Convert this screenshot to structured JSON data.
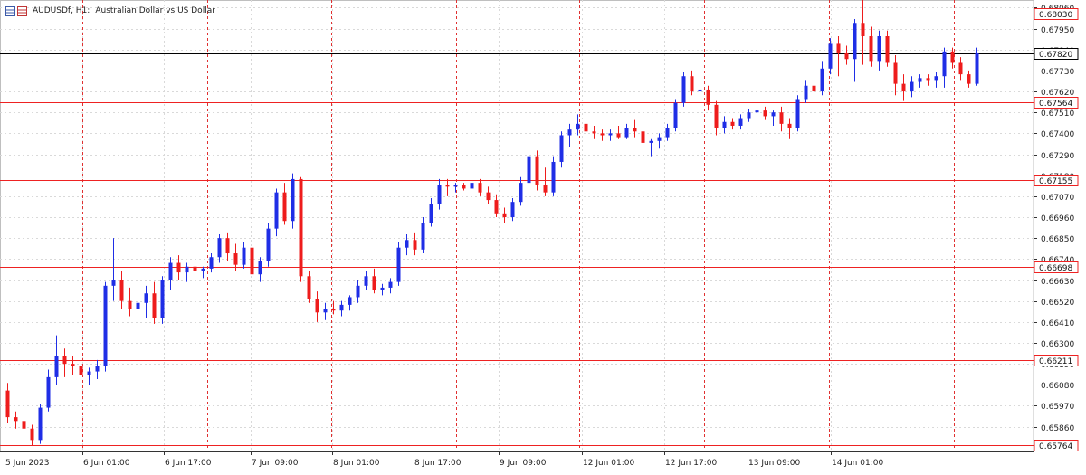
{
  "window": {
    "symbol": "AUDUSDf, H1:",
    "description": "Australian Dollar vs US Dollar",
    "menu_icon": "table-icon"
  },
  "colors": {
    "bull": "#1f2ee6",
    "bear": "#ee1c1c",
    "grid": "#d9d9d9",
    "level": "#ee2222",
    "current": "#000000",
    "session": "#e03030",
    "axis_text": "#222222",
    "label_bg": "#ffffff"
  },
  "chart_data": {
    "type": "candlestick",
    "title": "AUDUSDf, H1:  Australian Dollar vs US Dollar",
    "ylim": [
      0.6573,
      0.681
    ],
    "price_ticks": [
      "0.68060",
      "0.67950",
      "0.67840",
      "0.67730",
      "0.67620",
      "0.67510",
      "0.67400",
      "0.67290",
      "0.67180",
      "0.67070",
      "0.66960",
      "0.66850",
      "0.66740",
      "0.66630",
      "0.66520",
      "0.66410",
      "0.66300",
      "0.66190",
      "0.66080",
      "0.65970",
      "0.65860"
    ],
    "time_labels": [
      "5 Jun 2023",
      "6 Jun 01:00",
      "6 Jun 17:00",
      "7 Jun 09:00",
      "8 Jun 01:00",
      "8 Jun 17:00",
      "9 Jun 09:00",
      "12 Jun 01:00",
      "12 Jun 17:00",
      "13 Jun 09:00",
      "14 Jun 01:00"
    ],
    "horizontal_levels": [
      "0.68030",
      "0.67564",
      "0.67155",
      "0.66698",
      "0.66211",
      "0.65764"
    ],
    "current_price": "0.67820",
    "candles": [
      [
        0.6605,
        0.6609,
        0.6588,
        0.6591
      ],
      [
        0.6591,
        0.6594,
        0.6585,
        0.6589
      ],
      [
        0.6589,
        0.6592,
        0.6582,
        0.6585
      ],
      [
        0.6585,
        0.6587,
        0.6576,
        0.6579
      ],
      [
        0.6579,
        0.6598,
        0.6577,
        0.6596
      ],
      [
        0.6596,
        0.6616,
        0.6594,
        0.6612
      ],
      [
        0.6612,
        0.6634,
        0.6608,
        0.6623
      ],
      [
        0.6623,
        0.6627,
        0.6612,
        0.6619
      ],
      [
        0.6619,
        0.6623,
        0.6613,
        0.6618
      ],
      [
        0.6618,
        0.6621,
        0.6611,
        0.6613
      ],
      [
        0.6613,
        0.6617,
        0.6608,
        0.6615
      ],
      [
        0.6615,
        0.6621,
        0.6611,
        0.6618
      ],
      [
        0.6618,
        0.6662,
        0.6615,
        0.666
      ],
      [
        0.666,
        0.6685,
        0.6652,
        0.6663
      ],
      [
        0.6663,
        0.6668,
        0.6648,
        0.6652
      ],
      [
        0.6652,
        0.6659,
        0.6644,
        0.6648
      ],
      [
        0.6648,
        0.6655,
        0.6639,
        0.6651
      ],
      [
        0.6651,
        0.666,
        0.6643,
        0.6656
      ],
      [
        0.6656,
        0.6662,
        0.664,
        0.6643
      ],
      [
        0.6643,
        0.6665,
        0.664,
        0.6663
      ],
      [
        0.6663,
        0.6675,
        0.6658,
        0.6672
      ],
      [
        0.6672,
        0.6676,
        0.6663,
        0.6667
      ],
      [
        0.6667,
        0.6672,
        0.6662,
        0.667
      ],
      [
        0.667,
        0.6673,
        0.6665,
        0.6668
      ],
      [
        0.6668,
        0.667,
        0.6664,
        0.6669
      ],
      [
        0.6669,
        0.6677,
        0.6667,
        0.6675
      ],
      [
        0.6675,
        0.6687,
        0.6672,
        0.6685
      ],
      [
        0.6685,
        0.6688,
        0.6673,
        0.6677
      ],
      [
        0.6677,
        0.6682,
        0.6668,
        0.6671
      ],
      [
        0.6671,
        0.6683,
        0.6669,
        0.668
      ],
      [
        0.668,
        0.6683,
        0.6663,
        0.6666
      ],
      [
        0.6666,
        0.6675,
        0.6662,
        0.6673
      ],
      [
        0.6673,
        0.6693,
        0.667,
        0.669
      ],
      [
        0.669,
        0.6711,
        0.6686,
        0.6709
      ],
      [
        0.6709,
        0.6714,
        0.6692,
        0.6694
      ],
      [
        0.6694,
        0.6719,
        0.669,
        0.6716
      ],
      [
        0.6716,
        0.6717,
        0.6662,
        0.6665
      ],
      [
        0.6665,
        0.6668,
        0.6651,
        0.6653
      ],
      [
        0.6653,
        0.6657,
        0.6641,
        0.6646
      ],
      [
        0.6646,
        0.6651,
        0.6642,
        0.6648
      ],
      [
        0.6648,
        0.6652,
        0.6645,
        0.6647
      ],
      [
        0.6647,
        0.6652,
        0.6644,
        0.665
      ],
      [
        0.665,
        0.6655,
        0.6647,
        0.6654
      ],
      [
        0.6654,
        0.6663,
        0.6651,
        0.666
      ],
      [
        0.666,
        0.6668,
        0.6658,
        0.6665
      ],
      [
        0.6665,
        0.6669,
        0.6656,
        0.6658
      ],
      [
        0.6658,
        0.6661,
        0.6655,
        0.6659
      ],
      [
        0.6659,
        0.6664,
        0.6656,
        0.6662
      ],
      [
        0.6662,
        0.6683,
        0.666,
        0.668
      ],
      [
        0.668,
        0.6687,
        0.6676,
        0.6684
      ],
      [
        0.6684,
        0.6688,
        0.6676,
        0.6679
      ],
      [
        0.6679,
        0.6696,
        0.6677,
        0.6693
      ],
      [
        0.6693,
        0.6706,
        0.6691,
        0.6703
      ],
      [
        0.6703,
        0.6716,
        0.67,
        0.6713
      ],
      [
        0.6713,
        0.6716,
        0.6707,
        0.6712
      ],
      [
        0.6712,
        0.6714,
        0.6709,
        0.6713
      ],
      [
        0.6713,
        0.6714,
        0.671,
        0.6711
      ],
      [
        0.6711,
        0.6716,
        0.6709,
        0.6714
      ],
      [
        0.6714,
        0.6716,
        0.6707,
        0.6709
      ],
      [
        0.6709,
        0.6712,
        0.6703,
        0.6705
      ],
      [
        0.6705,
        0.6708,
        0.6696,
        0.6698
      ],
      [
        0.6698,
        0.6701,
        0.6693,
        0.6696
      ],
      [
        0.6696,
        0.6706,
        0.6694,
        0.6704
      ],
      [
        0.6704,
        0.6717,
        0.6702,
        0.6714
      ],
      [
        0.6714,
        0.6731,
        0.6712,
        0.6728
      ],
      [
        0.6728,
        0.6731,
        0.671,
        0.6713
      ],
      [
        0.6713,
        0.6722,
        0.6707,
        0.6709
      ],
      [
        0.6709,
        0.6728,
        0.6707,
        0.6725
      ],
      [
        0.6725,
        0.6741,
        0.6722,
        0.6739
      ],
      [
        0.6739,
        0.6745,
        0.6733,
        0.6742
      ],
      [
        0.6742,
        0.675,
        0.6739,
        0.6745
      ],
      [
        0.6745,
        0.6747,
        0.6739,
        0.6741
      ],
      [
        0.6741,
        0.6744,
        0.6737,
        0.674
      ],
      [
        0.674,
        0.6742,
        0.6736,
        0.6739
      ],
      [
        0.6739,
        0.6742,
        0.6736,
        0.674
      ],
      [
        0.674,
        0.6744,
        0.6737,
        0.6738
      ],
      [
        0.6738,
        0.6745,
        0.6737,
        0.6743
      ],
      [
        0.6743,
        0.6747,
        0.6738,
        0.6741
      ],
      [
        0.6741,
        0.6743,
        0.6734,
        0.6735
      ],
      [
        0.6735,
        0.6737,
        0.6728,
        0.6736
      ],
      [
        0.6736,
        0.674,
        0.6732,
        0.6738
      ],
      [
        0.6738,
        0.6745,
        0.6736,
        0.6743
      ],
      [
        0.6743,
        0.6758,
        0.6741,
        0.6756
      ],
      [
        0.6756,
        0.6772,
        0.6754,
        0.677
      ],
      [
        0.677,
        0.6773,
        0.676,
        0.6762
      ],
      [
        0.6762,
        0.6766,
        0.6755,
        0.6763
      ],
      [
        0.6763,
        0.6765,
        0.6752,
        0.6755
      ],
      [
        0.6755,
        0.6757,
        0.6739,
        0.6743
      ],
      [
        0.6743,
        0.6749,
        0.674,
        0.6746
      ],
      [
        0.6746,
        0.6748,
        0.6742,
        0.6744
      ],
      [
        0.6744,
        0.675,
        0.6742,
        0.6748
      ],
      [
        0.6748,
        0.6753,
        0.6746,
        0.6751
      ],
      [
        0.6751,
        0.6754,
        0.6749,
        0.6752
      ],
      [
        0.6752,
        0.6754,
        0.6747,
        0.6749
      ],
      [
        0.6749,
        0.6752,
        0.6744,
        0.6751
      ],
      [
        0.6751,
        0.6754,
        0.6741,
        0.6745
      ],
      [
        0.6745,
        0.6748,
        0.6737,
        0.6743
      ],
      [
        0.6743,
        0.676,
        0.6741,
        0.6758
      ],
      [
        0.6758,
        0.6768,
        0.6756,
        0.6765
      ],
      [
        0.6765,
        0.6769,
        0.6758,
        0.6762
      ],
      [
        0.6762,
        0.6778,
        0.676,
        0.6774
      ],
      [
        0.6774,
        0.679,
        0.6771,
        0.6787
      ],
      [
        0.6787,
        0.6791,
        0.677,
        0.6782
      ],
      [
        0.6782,
        0.6786,
        0.6776,
        0.6779
      ],
      [
        0.6779,
        0.68,
        0.6767,
        0.6798
      ],
      [
        0.6798,
        0.6812,
        0.6776,
        0.6791
      ],
      [
        0.6791,
        0.6796,
        0.6775,
        0.6778
      ],
      [
        0.6778,
        0.6794,
        0.6773,
        0.6791
      ],
      [
        0.6791,
        0.6794,
        0.6775,
        0.6777
      ],
      [
        0.6777,
        0.6781,
        0.676,
        0.6766
      ],
      [
        0.6766,
        0.6771,
        0.6757,
        0.6762
      ],
      [
        0.6762,
        0.677,
        0.6759,
        0.6767
      ],
      [
        0.6767,
        0.6771,
        0.6764,
        0.6769
      ],
      [
        0.6769,
        0.6771,
        0.6765,
        0.6768
      ],
      [
        0.6768,
        0.6772,
        0.6764,
        0.677
      ],
      [
        0.677,
        0.6785,
        0.6764,
        0.6783
      ],
      [
        0.6783,
        0.6785,
        0.6774,
        0.6777
      ],
      [
        0.6777,
        0.678,
        0.6768,
        0.6771
      ],
      [
        0.6771,
        0.6773,
        0.6764,
        0.6766
      ],
      [
        0.6766,
        0.6785,
        0.6765,
        0.6782
      ]
    ]
  }
}
